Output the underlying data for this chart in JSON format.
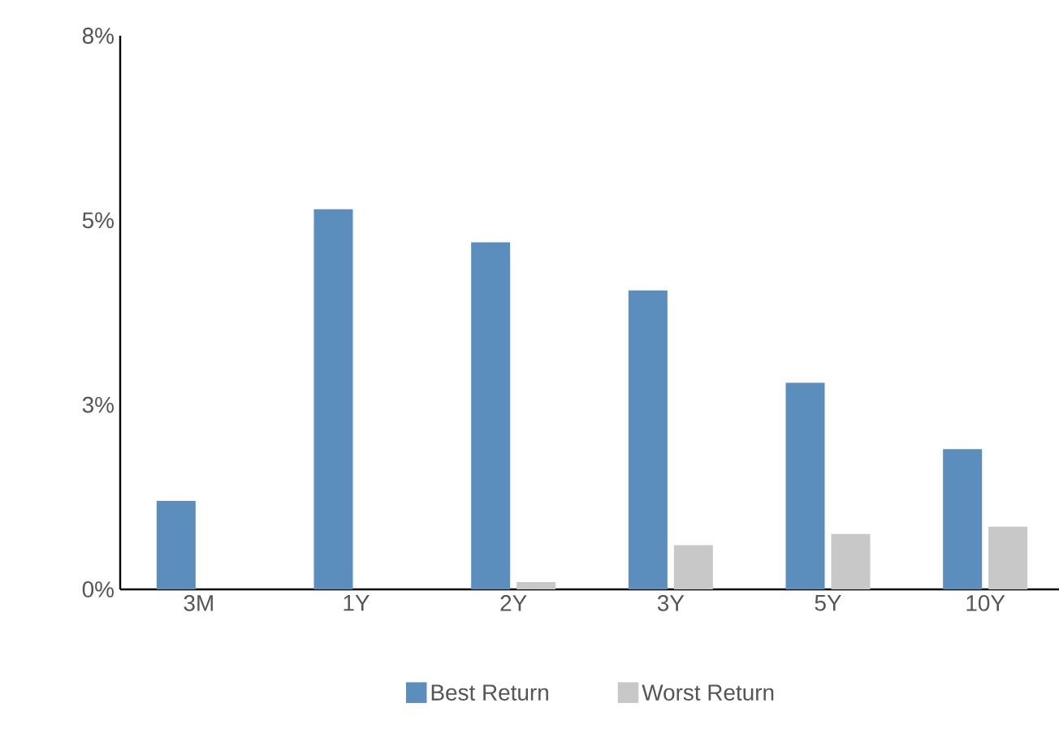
{
  "chart_data": {
    "type": "bar",
    "categories": [
      "3M",
      "1Y",
      "2Y",
      "3Y",
      "5Y",
      "10Y"
    ],
    "series": [
      {
        "name": "Best Return",
        "color": "#5b8dbd",
        "values": [
          1.2,
          5.15,
          4.7,
          4.05,
          2.8,
          1.9
        ]
      },
      {
        "name": "Worst Return",
        "color": "#c8c8c8",
        "values": [
          0,
          0,
          0.1,
          0.6,
          0.75,
          0.85
        ]
      }
    ],
    "ylim": [
      0,
      7.5
    ],
    "yticks": [
      {
        "value": 0,
        "label": "0%"
      },
      {
        "value": 2.5,
        "label": "3%"
      },
      {
        "value": 5,
        "label": "5%"
      },
      {
        "value": 7.5,
        "label": "8%"
      }
    ],
    "grid": false,
    "legend": "bottom"
  }
}
